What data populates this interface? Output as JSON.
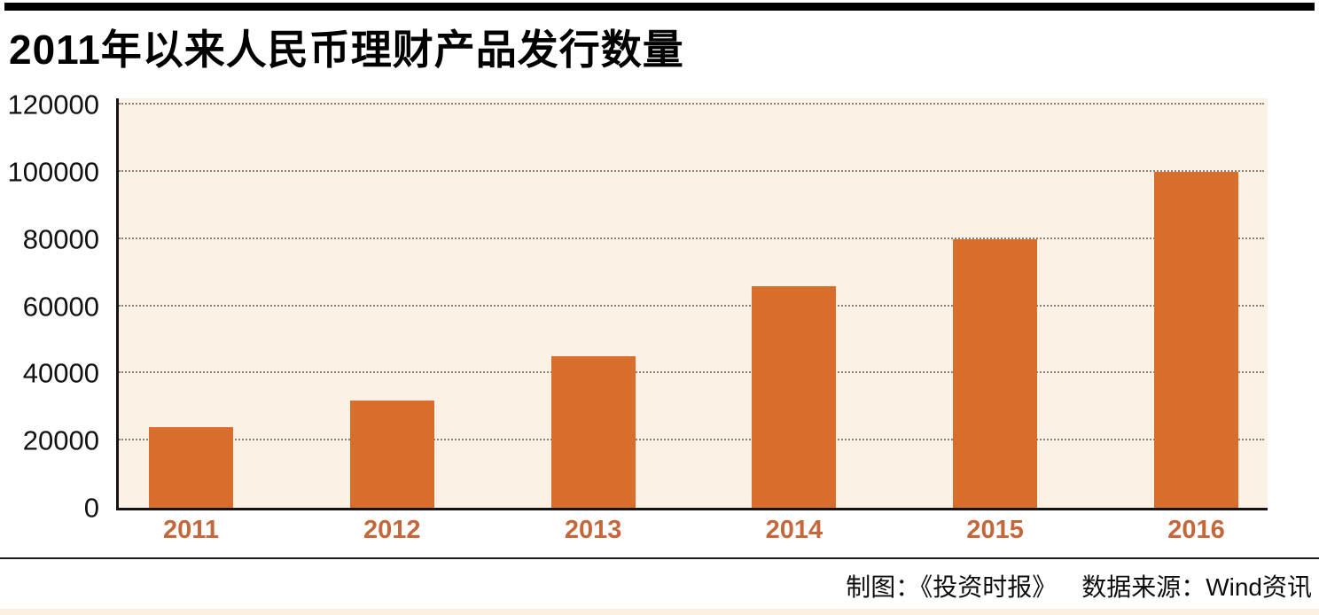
{
  "header": {
    "title": "2011年以来人民币理财产品发行数量"
  },
  "footer": {
    "credit_left": "制图：《投资时报》",
    "credit_right": "数据来源：Wind资讯"
  },
  "colors": {
    "bar": "#d96d2b",
    "plot_background": "#fbf1e4",
    "gridline": "#8b8072",
    "x_label": "#c4683c",
    "top_bar": "#000000",
    "bottom_strip": "#fbf0e1"
  },
  "chart_data": {
    "type": "bar",
    "title": "2011年以来人民币理财产品发行数量",
    "categories": [
      "2011",
      "2012",
      "2013",
      "2014",
      "2015",
      "2016"
    ],
    "values": [
      24000,
      32000,
      45000,
      66000,
      80000,
      100000
    ],
    "xlabel": "",
    "ylabel": "",
    "ylim": [
      0,
      120000
    ],
    "yticks": [
      0,
      20000,
      40000,
      60000,
      80000,
      100000,
      120000
    ],
    "grid": "horizontal-dotted",
    "legend_position": "none",
    "bar_color": "#d96d2b",
    "source_note": "数据来源：Wind资讯",
    "credit_note": "制图：《投资时报》"
  }
}
